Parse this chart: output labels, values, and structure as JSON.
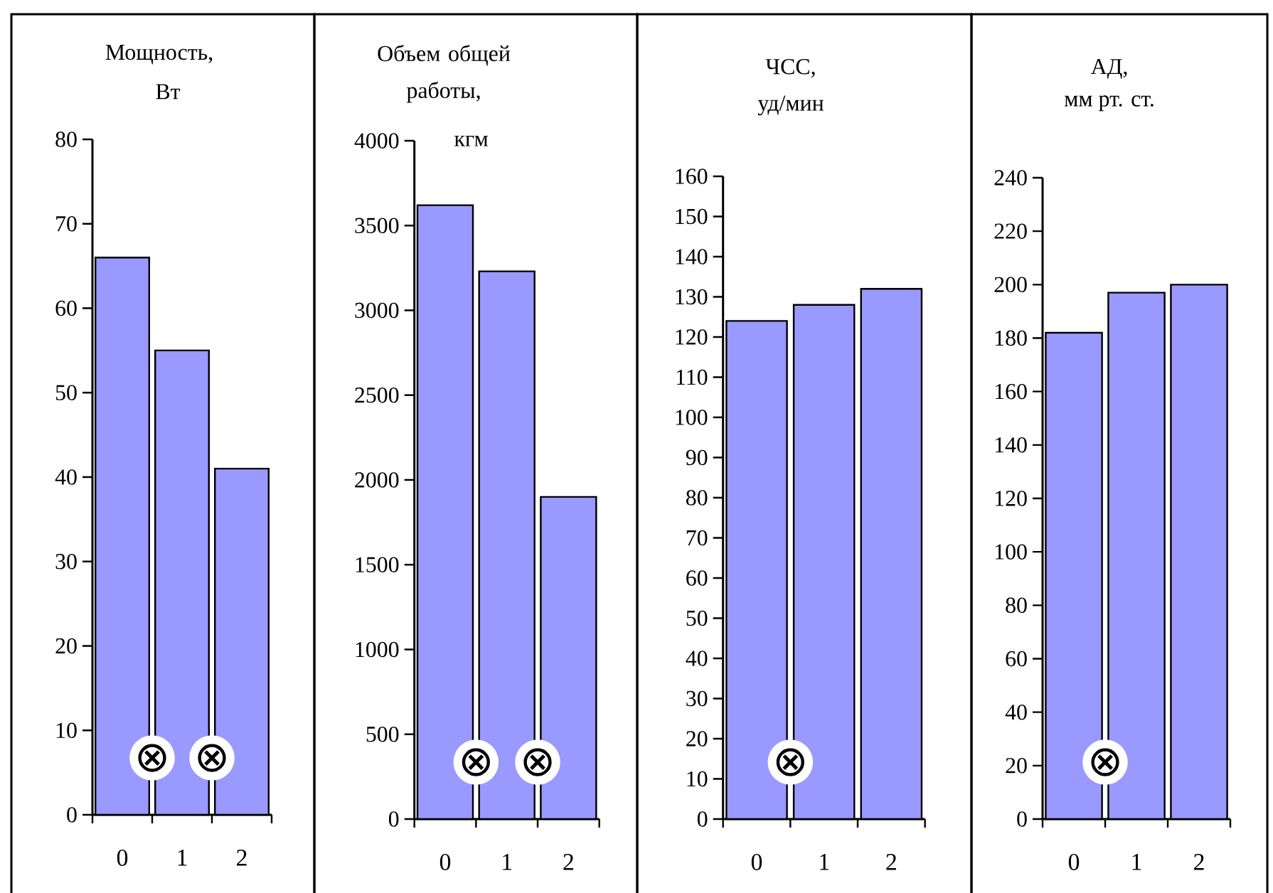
{
  "chart_data": [
    {
      "type": "bar",
      "title": "Мощность,",
      "ylabel": "Вт",
      "categories": [
        "0",
        "1",
        "2"
      ],
      "values": [
        66,
        55,
        41
      ],
      "color": "#9999ff",
      "ylim": [
        0,
        80
      ],
      "yticks": [
        0,
        10,
        20,
        30,
        40,
        50,
        60,
        70,
        80
      ],
      "annotations": [
        "⊗",
        "⊗"
      ]
    },
    {
      "type": "bar",
      "title": "Объем общей работы,",
      "ylabel": "кгм",
      "categories": [
        "0",
        "1",
        "2"
      ],
      "values": [
        3620,
        3230,
        1900
      ],
      "color": "#9999ff",
      "ylim": [
        0,
        4000
      ],
      "yticks": [
        0,
        500,
        1000,
        1500,
        2000,
        2500,
        3000,
        3500,
        4000
      ],
      "annotations": [
        "⊗",
        "⊗"
      ]
    },
    {
      "type": "bar",
      "title": "ЧСС,",
      "ylabel": "уд/мин",
      "categories": [
        "0",
        "1",
        "2"
      ],
      "values": [
        124,
        128,
        132
      ],
      "color": "#9999ff",
      "ylim": [
        0,
        160
      ],
      "yticks": [
        0,
        10,
        20,
        30,
        40,
        50,
        60,
        70,
        80,
        90,
        100,
        110,
        120,
        130,
        140,
        150,
        160
      ],
      "annotations": [
        "⊗"
      ]
    },
    {
      "type": "bar",
      "title": "АД,",
      "ylabel": "мм рт. ст.",
      "categories": [
        "0",
        "1",
        "2"
      ],
      "values": [
        182,
        197,
        200
      ],
      "color": "#9999ff",
      "ylim": [
        0,
        240
      ],
      "yticks": [
        0,
        20,
        40,
        60,
        80,
        100,
        120,
        140,
        160,
        180,
        200,
        220,
        240
      ],
      "annotations": [
        "⊗"
      ]
    }
  ]
}
